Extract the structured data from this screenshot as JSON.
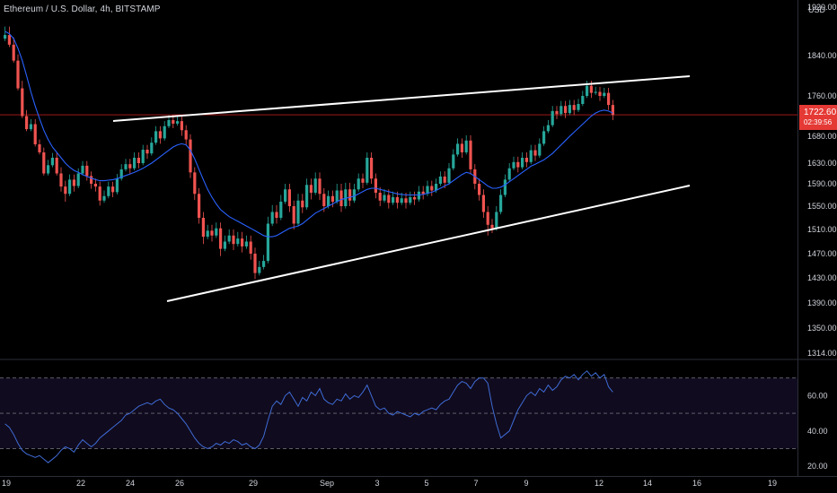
{
  "header": {
    "symbol": "Ethereum / U.S. Dollar, 4h, BITSTAMP"
  },
  "currency": "USD",
  "last_price": {
    "value": "1722.60",
    "countdown": "02:39:56",
    "color": "#e53935"
  },
  "colors": {
    "background": "#000000",
    "up": "#26a69a",
    "down": "#ef5350",
    "ma": "#2962ff",
    "rsi": "#3f6bd6",
    "trendline": "#ffffff",
    "price_line": "#b71c1c",
    "axis_text": "#d1d4dc",
    "rsi_band": "#100b1e"
  },
  "chart_data": [
    {
      "type": "candlestick",
      "title": "Ethereum / U.S. Dollar, 4h, BITSTAMP",
      "timeframe": "4h",
      "x_ticks": [
        "19",
        "22",
        "24",
        "26",
        "29",
        "Sep",
        "3",
        "5",
        "7",
        "9",
        "12",
        "14",
        "16",
        "19"
      ],
      "y_ticks": [
        "1920.00",
        "1840.00",
        "1760.00",
        "1680.00",
        "1630.00",
        "1590.00",
        "1550.00",
        "1510.00",
        "1470.00",
        "1430.00",
        "1390.00",
        "1350.00",
        "1314.00"
      ],
      "ylim": [
        1314,
        1920
      ],
      "last_price": 1722.6,
      "candles": [
        [
          1868,
          1878,
          1874,
          1884
        ],
        [
          1874,
          1884,
          1858,
          1866
        ],
        [
          1858,
          1866,
          1830,
          1830
        ],
        [
          1830,
          1838,
          1775,
          1786
        ],
        [
          1775,
          1786,
          1720,
          1720
        ],
        [
          1720,
          1728,
          1694,
          1694
        ],
        [
          1694,
          1700,
          1704,
          1710
        ],
        [
          1704,
          1710,
          1665,
          1670
        ],
        [
          1665,
          1670,
          1650,
          1650
        ],
        [
          1650,
          1655,
          1610,
          1610
        ],
        [
          1610,
          1618,
          1626,
          1632
        ],
        [
          1626,
          1632,
          1640,
          1645
        ],
        [
          1640,
          1645,
          1610,
          1610
        ],
        [
          1610,
          1618,
          1585,
          1580
        ],
        [
          1585,
          1592,
          1572,
          1562
        ],
        [
          1572,
          1578,
          1598,
          1604
        ],
        [
          1598,
          1604,
          1586,
          1580
        ],
        [
          1586,
          1590,
          1610,
          1616
        ],
        [
          1610,
          1616,
          1625,
          1630
        ],
        [
          1625,
          1630,
          1605,
          1600
        ],
        [
          1605,
          1610,
          1590,
          1585
        ],
        [
          1590,
          1596,
          1585,
          1580
        ],
        [
          1585,
          1590,
          1560,
          1555
        ],
        [
          1560,
          1566,
          1568,
          1574
        ],
        [
          1568,
          1574,
          1585,
          1590
        ],
        [
          1585,
          1590,
          1575,
          1570
        ],
        [
          1575,
          1580,
          1600,
          1605
        ],
        [
          1600,
          1605,
          1618,
          1624
        ],
        [
          1618,
          1624,
          1628,
          1634
        ],
        [
          1628,
          1634,
          1620,
          1614
        ],
        [
          1620,
          1626,
          1640,
          1646
        ],
        [
          1640,
          1646,
          1630,
          1624
        ],
        [
          1630,
          1636,
          1655,
          1660
        ],
        [
          1655,
          1660,
          1648,
          1642
        ],
        [
          1648,
          1654,
          1668,
          1674
        ],
        [
          1668,
          1674,
          1690,
          1696
        ],
        [
          1690,
          1696,
          1676,
          1670
        ],
        [
          1676,
          1680,
          1700,
          1706
        ],
        [
          1700,
          1706,
          1712,
          1718
        ],
        [
          1712,
          1718,
          1705,
          1700
        ],
        [
          1705,
          1710,
          1710,
          1716
        ],
        [
          1710,
          1716,
          1692,
          1685
        ],
        [
          1692,
          1698,
          1674,
          1668
        ],
        [
          1674,
          1680,
          1612,
          1605
        ],
        [
          1612,
          1618,
          1572,
          1565
        ],
        [
          1572,
          1578,
          1530,
          1524
        ],
        [
          1530,
          1536,
          1498,
          1490
        ],
        [
          1498,
          1504,
          1508,
          1514
        ],
        [
          1508,
          1514,
          1500,
          1494
        ],
        [
          1500,
          1506,
          1512,
          1518
        ],
        [
          1512,
          1518,
          1478,
          1470
        ],
        [
          1478,
          1484,
          1490,
          1496
        ],
        [
          1490,
          1496,
          1500,
          1506
        ],
        [
          1500,
          1506,
          1486,
          1480
        ],
        [
          1486,
          1492,
          1495,
          1502
        ],
        [
          1495,
          1502,
          1482,
          1476
        ],
        [
          1482,
          1488,
          1490,
          1496
        ],
        [
          1490,
          1496,
          1470,
          1464
        ],
        [
          1470,
          1476,
          1438,
          1432
        ],
        [
          1438,
          1444,
          1448,
          1454
        ],
        [
          1448,
          1454,
          1458,
          1464
        ],
        [
          1458,
          1464,
          1520,
          1528
        ],
        [
          1520,
          1528,
          1540,
          1548
        ],
        [
          1540,
          1548,
          1530,
          1524
        ],
        [
          1530,
          1536,
          1558,
          1566
        ],
        [
          1558,
          1566,
          1580,
          1586
        ],
        [
          1580,
          1586,
          1550,
          1544
        ],
        [
          1550,
          1556,
          1520,
          1514
        ],
        [
          1520,
          1526,
          1560,
          1568
        ],
        [
          1560,
          1568,
          1548,
          1542
        ],
        [
          1548,
          1554,
          1588,
          1596
        ],
        [
          1588,
          1596,
          1574,
          1566
        ],
        [
          1574,
          1580,
          1600,
          1608
        ],
        [
          1600,
          1608,
          1572,
          1565
        ],
        [
          1572,
          1578,
          1550,
          1544
        ],
        [
          1550,
          1556,
          1568,
          1574
        ],
        [
          1568,
          1574,
          1558,
          1552
        ],
        [
          1558,
          1564,
          1578,
          1586
        ],
        [
          1578,
          1586,
          1550,
          1544
        ],
        [
          1550,
          1556,
          1580,
          1588
        ],
        [
          1580,
          1588,
          1560,
          1554
        ],
        [
          1560,
          1566,
          1580,
          1586
        ],
        [
          1580,
          1586,
          1600,
          1606
        ],
        [
          1600,
          1606,
          1592,
          1586
        ],
        [
          1592,
          1598,
          1640,
          1646
        ],
        [
          1640,
          1646,
          1600,
          1594
        ],
        [
          1600,
          1606,
          1574,
          1568
        ],
        [
          1574,
          1580,
          1560,
          1554
        ],
        [
          1560,
          1566,
          1570,
          1576
        ],
        [
          1570,
          1576,
          1556,
          1550
        ],
        [
          1556,
          1562,
          1566,
          1572
        ],
        [
          1566,
          1572,
          1556,
          1550
        ],
        [
          1556,
          1562,
          1564,
          1570
        ],
        [
          1564,
          1570,
          1556,
          1550
        ],
        [
          1556,
          1562,
          1566,
          1572
        ],
        [
          1566,
          1572,
          1562,
          1556
        ],
        [
          1562,
          1568,
          1576,
          1582
        ],
        [
          1576,
          1582,
          1572,
          1566
        ],
        [
          1572,
          1578,
          1586,
          1592
        ],
        [
          1586,
          1592,
          1578,
          1572
        ],
        [
          1578,
          1584,
          1590,
          1596
        ],
        [
          1590,
          1596,
          1604,
          1610
        ],
        [
          1604,
          1610,
          1592,
          1586
        ],
        [
          1592,
          1598,
          1620,
          1626
        ],
        [
          1620,
          1626,
          1646,
          1652
        ],
        [
          1646,
          1652,
          1666,
          1672
        ],
        [
          1666,
          1672,
          1650,
          1644
        ],
        [
          1650,
          1656,
          1672,
          1678
        ],
        [
          1672,
          1678,
          1618,
          1612
        ],
        [
          1618,
          1624,
          1590,
          1584
        ],
        [
          1590,
          1596,
          1570,
          1564
        ],
        [
          1570,
          1576,
          1540,
          1534
        ],
        [
          1540,
          1546,
          1518,
          1504
        ],
        [
          1518,
          1524,
          1512,
          1508
        ],
        [
          1512,
          1518,
          1540,
          1546
        ],
        [
          1540,
          1546,
          1570,
          1576
        ],
        [
          1570,
          1576,
          1598,
          1604
        ],
        [
          1598,
          1604,
          1620,
          1626
        ],
        [
          1620,
          1626,
          1632,
          1638
        ],
        [
          1632,
          1638,
          1622,
          1616
        ],
        [
          1622,
          1628,
          1640,
          1646
        ],
        [
          1640,
          1646,
          1632,
          1626
        ],
        [
          1632,
          1638,
          1654,
          1660
        ],
        [
          1654,
          1660,
          1644,
          1638
        ],
        [
          1644,
          1650,
          1666,
          1672
        ],
        [
          1666,
          1672,
          1690,
          1696
        ],
        [
          1690,
          1696,
          1702,
          1708
        ],
        [
          1702,
          1708,
          1730,
          1736
        ],
        [
          1730,
          1736,
          1724,
          1718
        ],
        [
          1724,
          1730,
          1740,
          1746
        ],
        [
          1740,
          1746,
          1726,
          1720
        ],
        [
          1726,
          1732,
          1742,
          1748
        ],
        [
          1742,
          1748,
          1732,
          1726
        ],
        [
          1732,
          1738,
          1744,
          1750
        ],
        [
          1744,
          1750,
          1760,
          1766
        ],
        [
          1760,
          1766,
          1780,
          1786
        ],
        [
          1780,
          1786,
          1766,
          1760
        ],
        [
          1766,
          1772,
          1768,
          1774
        ],
        [
          1768,
          1774,
          1760,
          1754
        ],
        [
          1760,
          1766,
          1766,
          1772
        ],
        [
          1766,
          1772,
          1742,
          1736
        ],
        [
          1742,
          1748,
          1722,
          1716
        ]
      ],
      "moving_average": [
        1880,
        1876,
        1868,
        1852,
        1830,
        1800,
        1768,
        1740,
        1715,
        1692,
        1674,
        1660,
        1650,
        1640,
        1630,
        1622,
        1616,
        1612,
        1608,
        1604,
        1601,
        1598,
        1596,
        1596,
        1597,
        1598,
        1600,
        1603,
        1606,
        1609,
        1612,
        1616,
        1620,
        1625,
        1630,
        1636,
        1642,
        1648,
        1654,
        1660,
        1664,
        1666,
        1664,
        1654,
        1638,
        1618,
        1598,
        1580,
        1566,
        1554,
        1544,
        1538,
        1532,
        1528,
        1524,
        1520,
        1516,
        1512,
        1508,
        1504,
        1500,
        1498,
        1498,
        1500,
        1504,
        1508,
        1512,
        1514,
        1516,
        1520,
        1526,
        1532,
        1538,
        1542,
        1546,
        1550,
        1554,
        1558,
        1562,
        1564,
        1566,
        1568,
        1572,
        1576,
        1580,
        1582,
        1582,
        1580,
        1578,
        1576,
        1574,
        1572,
        1571,
        1570,
        1570,
        1570,
        1570,
        1571,
        1573,
        1575,
        1578,
        1582,
        1586,
        1590,
        1596,
        1602,
        1608,
        1612,
        1610,
        1604,
        1598,
        1592,
        1586,
        1582,
        1582,
        1584,
        1588,
        1594,
        1600,
        1606,
        1612,
        1618,
        1624,
        1628,
        1632,
        1636,
        1642,
        1648,
        1656,
        1664,
        1672,
        1680,
        1688,
        1696,
        1704,
        1712,
        1720,
        1726,
        1730,
        1732,
        1730,
        1726
      ],
      "trendlines": [
        {
          "name": "upper",
          "from": [
            22.5,
            1731
          ],
          "to": [
            15.5,
            1795
          ]
        },
        {
          "name": "lower",
          "from": [
            25.5,
            1398
          ],
          "to": [
            15.5,
            1590
          ]
        }
      ]
    },
    {
      "type": "line",
      "name": "RSI",
      "ylim": [
        15,
        80
      ],
      "y_ticks": [
        "60.00",
        "40.00",
        "20.00"
      ],
      "bands": [
        30,
        50,
        70
      ],
      "values": [
        44,
        42,
        38,
        33,
        29,
        27,
        26,
        25,
        26,
        24,
        22,
        24,
        26,
        29,
        31,
        30,
        28,
        32,
        35,
        33,
        31,
        33,
        36,
        38,
        40,
        42,
        44,
        46,
        49,
        50,
        52,
        54,
        55,
        56,
        55,
        57,
        58,
        55,
        53,
        52,
        50,
        47,
        44,
        40,
        36,
        33,
        31,
        30,
        31,
        33,
        32,
        34,
        33,
        35,
        34,
        32,
        33,
        31,
        30,
        32,
        37,
        46,
        54,
        57,
        55,
        60,
        62,
        58,
        54,
        59,
        57,
        62,
        60,
        64,
        58,
        56,
        55,
        58,
        57,
        61,
        58,
        60,
        59,
        62,
        66,
        60,
        54,
        52,
        53,
        50,
        49,
        51,
        50,
        49,
        48,
        50,
        49,
        51,
        52,
        53,
        52,
        55,
        57,
        58,
        62,
        66,
        68,
        67,
        64,
        68,
        70,
        70,
        67,
        54,
        44,
        36,
        38,
        40,
        46,
        52,
        56,
        60,
        62,
        60,
        64,
        62,
        66,
        63,
        65,
        69,
        71,
        70,
        72,
        69,
        72,
        74,
        71,
        73,
        70,
        72,
        65,
        62
      ]
    }
  ]
}
